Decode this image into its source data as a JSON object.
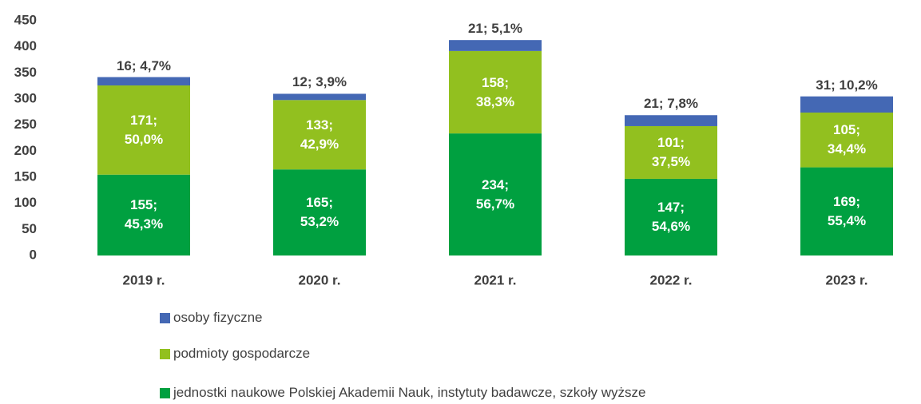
{
  "chart_data": {
    "type": "bar",
    "stacked": true,
    "categories": [
      "2019 r.",
      "2020 r.",
      "2021 r.",
      "2022 r.",
      "2023 r."
    ],
    "series": [
      {
        "name": "jednostki naukowe Polskiej Akademii Nauk, instytuty badawcze, szkoły wyższe",
        "color": "#00a040",
        "values": [
          155,
          165,
          234,
          147,
          169
        ],
        "value_labels": [
          "155; 45,3%",
          "165; 53,2%",
          "234; 56,7%",
          "147; 54,6%",
          "169; 55,4%"
        ]
      },
      {
        "name": "podmioty gospodarcze",
        "color": "#92c01f",
        "values": [
          171,
          133,
          158,
          101,
          105
        ],
        "value_labels": [
          "171; 50,0%",
          "133; 42,9%",
          "158; 38,3%",
          "101; 37,5%",
          "105; 34,4%"
        ]
      },
      {
        "name": "osoby fizyczne",
        "color": "#4468b4",
        "values": [
          16,
          12,
          21,
          21,
          31
        ],
        "value_labels": [
          "16; 4,7%",
          "12; 3,9%",
          "21; 5,1%",
          "21; 7,8%",
          "31; 10,2%"
        ]
      }
    ],
    "ylim": [
      0,
      450
    ],
    "yticks": [
      0,
      50,
      100,
      150,
      200,
      250,
      300,
      350,
      400,
      450
    ],
    "grid": false
  }
}
